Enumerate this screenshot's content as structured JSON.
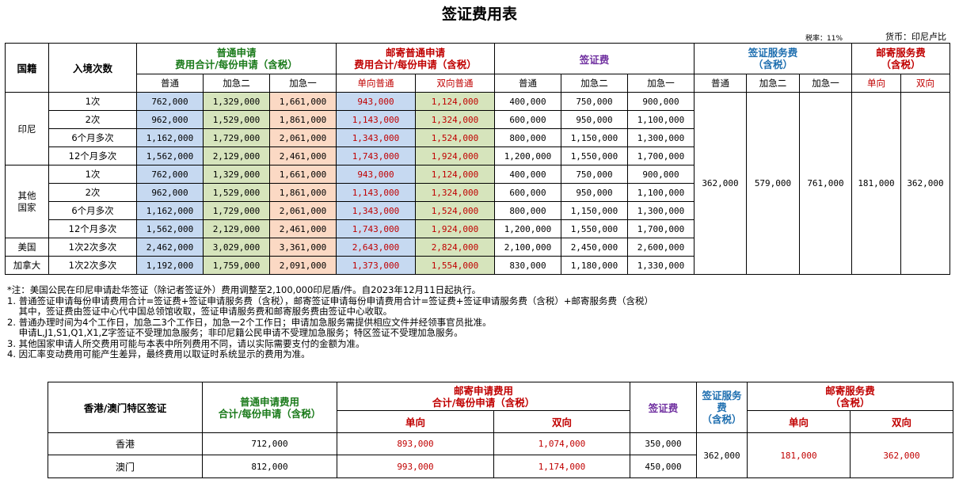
{
  "title": "签证费用表",
  "tax_rate": "税率：11%",
  "currency": "货币：印尼卢比",
  "headers": {
    "nationality": "国籍",
    "entries": "入境次数",
    "regular_group_l1": "普通申请",
    "regular_group_l2": "费用合计/每份申请（含税）",
    "mail_group_l1": "邮寄普通申请",
    "mail_group_l2": "费用合计/每份申请（含税）",
    "visa_fee": "签证费",
    "service_fee_l1": "签证服务费",
    "service_fee_l2": "（含税）",
    "mail_service_l1": "邮寄服务费",
    "mail_service_l2": "（含税）",
    "sub_regular": "普通",
    "sub_express2": "加急二",
    "sub_express1": "加急一",
    "sub_mail_single": "单向普通",
    "sub_mail_double": "双向普通",
    "sub_single": "单向",
    "sub_double": "双向"
  },
  "groups": {
    "indonesia": "印尼",
    "other": "其他国家",
    "usa": "美国",
    "canada": "加拿大"
  },
  "rows": [
    {
      "entry": "1次",
      "reg": "762,000",
      "e2": "1,329,000",
      "e1": "1,661,000",
      "ms": "943,000",
      "md": "1,124,000",
      "vr": "400,000",
      "v2": "750,000",
      "v1": "900,000"
    },
    {
      "entry": "2次",
      "reg": "962,000",
      "e2": "1,529,000",
      "e1": "1,861,000",
      "ms": "1,143,000",
      "md": "1,324,000",
      "vr": "600,000",
      "v2": "950,000",
      "v1": "1,100,000"
    },
    {
      "entry": "6个月多次",
      "reg": "1,162,000",
      "e2": "1,729,000",
      "e1": "2,061,000",
      "ms": "1,343,000",
      "md": "1,524,000",
      "vr": "800,000",
      "v2": "1,150,000",
      "v1": "1,300,000"
    },
    {
      "entry": "12个月多次",
      "reg": "1,562,000",
      "e2": "2,129,000",
      "e1": "2,461,000",
      "ms": "1,743,000",
      "md": "1,924,000",
      "vr": "1,200,000",
      "v2": "1,550,000",
      "v1": "1,700,000"
    },
    {
      "entry": "1次",
      "reg": "762,000",
      "e2": "1,329,000",
      "e1": "1,661,000",
      "ms": "943,000",
      "md": "1,124,000",
      "vr": "400,000",
      "v2": "750,000",
      "v1": "900,000"
    },
    {
      "entry": "2次",
      "reg": "962,000",
      "e2": "1,529,000",
      "e1": "1,861,000",
      "ms": "1,143,000",
      "md": "1,324,000",
      "vr": "600,000",
      "v2": "950,000",
      "v1": "1,100,000"
    },
    {
      "entry": "6个月多次",
      "reg": "1,162,000",
      "e2": "1,729,000",
      "e1": "2,061,000",
      "ms": "1,343,000",
      "md": "1,524,000",
      "vr": "800,000",
      "v2": "1,150,000",
      "v1": "1,300,000"
    },
    {
      "entry": "12个月多次",
      "reg": "1,562,000",
      "e2": "2,129,000",
      "e1": "2,461,000",
      "ms": "1,743,000",
      "md": "1,924,000",
      "vr": "1,200,000",
      "v2": "1,550,000",
      "v1": "1,700,000"
    },
    {
      "entry": "1次2次多次",
      "reg": "2,462,000",
      "e2": "3,029,000",
      "e1": "3,361,000",
      "ms": "2,643,000",
      "md": "2,824,000",
      "vr": "2,100,000",
      "v2": "2,450,000",
      "v1": "2,600,000"
    },
    {
      "entry": "1次2次多次",
      "reg": "1,192,000",
      "e2": "1,759,000",
      "e1": "2,091,000",
      "ms": "1,373,000",
      "md": "1,554,000",
      "vr": "830,000",
      "v2": "1,180,000",
      "v1": "1,330,000"
    }
  ],
  "service_fees": {
    "regular": "362,000",
    "express2": "579,000",
    "express1": "761,000",
    "mail_single": "181,000",
    "mail_double": "362,000"
  },
  "notes": [
    "*注：美国公民在印尼申请赴华签证（除记者签证外）费用调整至2,100,000印尼盾/件。自2023年12月11日起执行。",
    "1. 普通签证申请每份申请费用合计=签证费+签证申请服务费（含税），邮寄签证申请每份申请费用合计=签证费+签证申请服务费（含税）+邮寄服务费（含税）",
    "    其中，签证费由签证中心代中国总领馆收取，签证申请服务费和邮寄服务费由签证中心收取。",
    "2. 普通办理时间为4个工作日，加急二3个工作日，加急一2个工作日；申请加急服务需提供相应文件并经领事官员批准。",
    "    申请L,J1,S1,Q1,X1,Z字签证不受理加急服务；非印尼籍公民申请不受理加急服务；特区签证不受理加急服务。",
    "3. 其他国家申请人所交费用可能与本表中所列费用不同，请以实际需要支付的金额为准。",
    "4. 因汇率变动费用可能产生差异，最终费用以取证时系统显示的费用为准。"
  ],
  "hk": {
    "header": "香港/澳门特区签证",
    "regular_l1": "普通申请费用",
    "regular_l2": "合计/每份申请（含税）",
    "mail_l1": "邮寄申请费用",
    "mail_l2": "合计/每份申请（含税）",
    "visa_fee": "签证费",
    "service_l1": "签证服务",
    "service_l2": "费",
    "service_l3": "（含税）",
    "mail_service_l1": "邮寄服务费",
    "mail_service_l2": "（含税）",
    "single": "单向",
    "double": "双向",
    "rows": [
      {
        "name": "香港",
        "reg": "712,000",
        "ms": "893,000",
        "md": "1,074,000",
        "visa": "350,000"
      },
      {
        "name": "澳门",
        "reg": "812,000",
        "ms": "993,000",
        "md": "1,174,000",
        "visa": "450,000"
      }
    ],
    "service_fee": "362,000",
    "mail_single": "181,000",
    "mail_double": "362,000"
  }
}
